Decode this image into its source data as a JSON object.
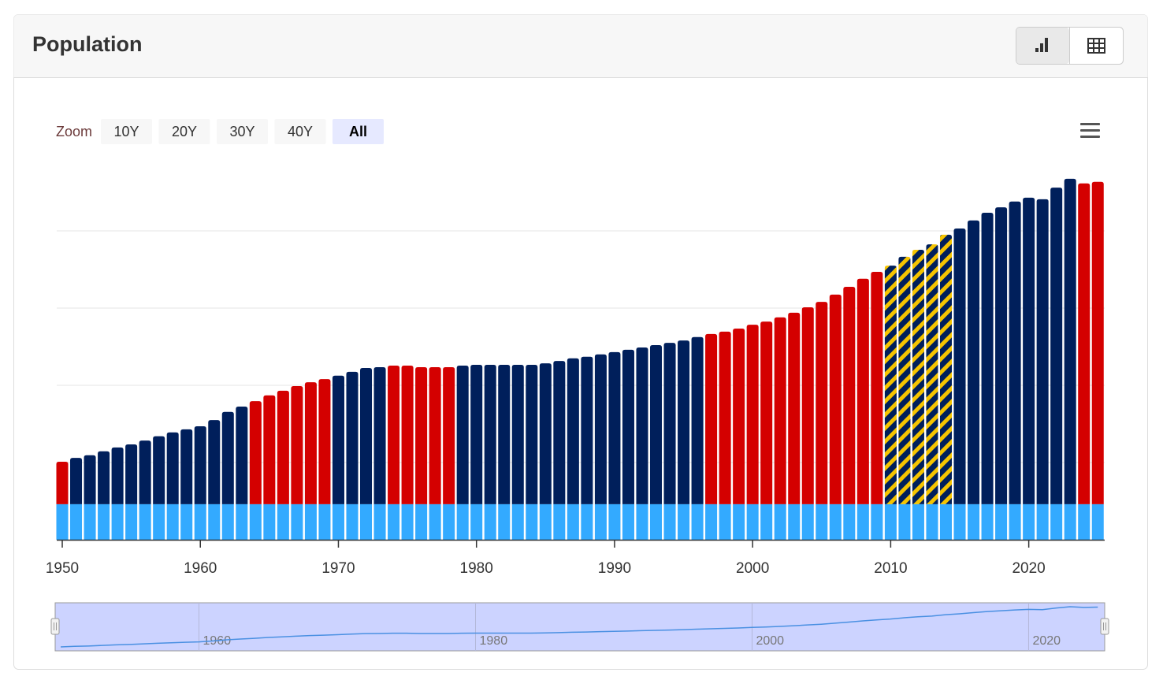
{
  "header": {
    "title": "Population"
  },
  "zoom": {
    "label": "Zoom",
    "buttons": [
      "10Y",
      "20Y",
      "30Y",
      "40Y",
      "All"
    ],
    "active": 4
  },
  "chart_data": {
    "type": "bar",
    "stacked": true,
    "x": [
      1950,
      1951,
      1952,
      1953,
      1954,
      1955,
      1956,
      1957,
      1958,
      1959,
      1960,
      1961,
      1962,
      1963,
      1964,
      1965,
      1966,
      1967,
      1968,
      1969,
      1970,
      1971,
      1972,
      1973,
      1974,
      1975,
      1976,
      1977,
      1978,
      1979,
      1980,
      1981,
      1982,
      1983,
      1984,
      1985,
      1986,
      1987,
      1988,
      1989,
      1990,
      1991,
      1992,
      1993,
      1994,
      1995,
      1996,
      1997,
      1998,
      1999,
      2000,
      2001,
      2002,
      2003,
      2004,
      2005,
      2006,
      2007,
      2008,
      2009,
      2010,
      2011,
      2012,
      2013,
      2014,
      2015,
      2016,
      2017,
      2018,
      2019,
      2020,
      2021,
      2022,
      2023,
      2024,
      2025
    ],
    "xlim": [
      1949.6,
      2025.5
    ],
    "xticks": [
      1950,
      1960,
      1970,
      1980,
      1990,
      2000,
      2010,
      2020
    ],
    "ylim": [
      0,
      10
    ],
    "yticks": [
      2,
      4,
      6,
      8
    ],
    "grid": true,
    "series": [
      {
        "color": "#33aaff",
        "values": [
          0.92,
          0.92,
          0.92,
          0.92,
          0.92,
          0.92,
          0.92,
          0.92,
          0.92,
          0.92,
          0.92,
          0.92,
          0.92,
          0.92,
          0.92,
          0.92,
          0.92,
          0.92,
          0.92,
          0.92,
          0.92,
          0.92,
          0.92,
          0.92,
          0.92,
          0.92,
          0.92,
          0.92,
          0.92,
          0.92,
          0.92,
          0.92,
          0.92,
          0.92,
          0.92,
          0.92,
          0.92,
          0.92,
          0.92,
          0.92,
          0.92,
          0.92,
          0.92,
          0.92,
          0.92,
          0.92,
          0.92,
          0.92,
          0.92,
          0.92,
          0.92,
          0.92,
          0.92,
          0.92,
          0.92,
          0.92,
          0.92,
          0.92,
          0.92,
          0.92,
          0.92,
          0.92,
          0.92,
          0.92,
          0.92,
          0.92,
          0.92,
          0.92,
          0.92,
          0.92,
          0.92,
          0.92,
          0.92,
          0.92,
          0.92,
          0.92
        ]
      },
      {
        "values": [
          1.1,
          1.2,
          1.27,
          1.37,
          1.47,
          1.55,
          1.65,
          1.76,
          1.86,
          1.94,
          2.02,
          2.18,
          2.39,
          2.53,
          2.67,
          2.82,
          2.94,
          3.06,
          3.16,
          3.24,
          3.33,
          3.43,
          3.53,
          3.55,
          3.59,
          3.59,
          3.55,
          3.55,
          3.55,
          3.59,
          3.61,
          3.61,
          3.61,
          3.61,
          3.61,
          3.65,
          3.71,
          3.78,
          3.82,
          3.88,
          3.94,
          4.0,
          4.06,
          4.12,
          4.18,
          4.24,
          4.33,
          4.41,
          4.47,
          4.55,
          4.65,
          4.73,
          4.84,
          4.96,
          5.1,
          5.24,
          5.43,
          5.63,
          5.84,
          6.02,
          6.18,
          6.41,
          6.59,
          6.73,
          6.98,
          7.14,
          7.35,
          7.55,
          7.69,
          7.84,
          7.94,
          7.9,
          8.2,
          8.43,
          8.31,
          8.35
        ],
        "colors": [
          "#d40000",
          "#001f5b",
          "#001f5b",
          "#001f5b",
          "#001f5b",
          "#001f5b",
          "#001f5b",
          "#001f5b",
          "#001f5b",
          "#001f5b",
          "#001f5b",
          "#001f5b",
          "#001f5b",
          "#001f5b",
          "#d40000",
          "#d40000",
          "#d40000",
          "#d40000",
          "#d40000",
          "#d40000",
          "#001f5b",
          "#001f5b",
          "#001f5b",
          "#001f5b",
          "#d40000",
          "#d40000",
          "#d40000",
          "#d40000",
          "#d40000",
          "#001f5b",
          "#001f5b",
          "#001f5b",
          "#001f5b",
          "#001f5b",
          "#001f5b",
          "#001f5b",
          "#001f5b",
          "#001f5b",
          "#001f5b",
          "#001f5b",
          "#001f5b",
          "#001f5b",
          "#001f5b",
          "#001f5b",
          "#001f5b",
          "#001f5b",
          "#001f5b",
          "#d40000",
          "#d40000",
          "#d40000",
          "#d40000",
          "#d40000",
          "#d40000",
          "#d40000",
          "#d40000",
          "#d40000",
          "#d40000",
          "#d40000",
          "#d40000",
          "#d40000",
          "#001f5b",
          "#001f5b",
          "#001f5b",
          "#001f5b",
          "#001f5b",
          "#001f5b",
          "#001f5b",
          "#001f5b",
          "#001f5b",
          "#001f5b",
          "#001f5b",
          "#001f5b",
          "#001f5b",
          "#001f5b",
          "#d40000",
          "#d40000"
        ],
        "hatch_color": "#f5c400",
        "hatched": [
          2010,
          2011,
          2012,
          2013,
          2014
        ]
      }
    ],
    "navigator": {
      "color": "#4a90e2",
      "xticks": [
        1960,
        1980,
        2000,
        2020
      ]
    }
  }
}
